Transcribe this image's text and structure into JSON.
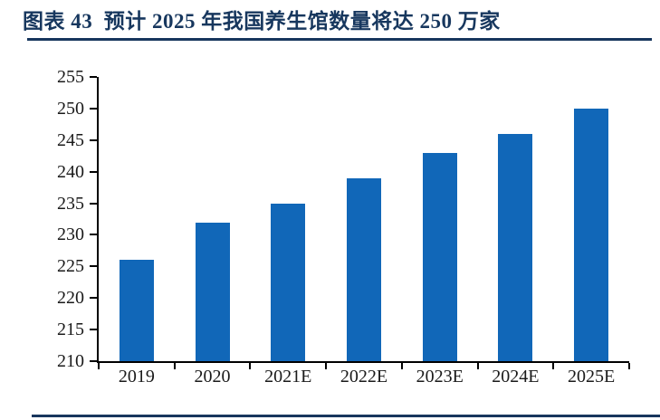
{
  "header": {
    "figure_label": "图表 43",
    "title": "图表 43  预计 2025 年我国养生馆数量将达 250 万家"
  },
  "colors": {
    "accent_rule": "#17365D",
    "title_text": "#17375E",
    "bar_fill": "#1167B8",
    "axis_line": "#000000",
    "tick_text": "#1a1a1a"
  },
  "chart_data": {
    "type": "bar",
    "title": "预计 2025 年我国养生馆数量将达 250 万家",
    "unit_hint": "万家",
    "categories": [
      "2019",
      "2020",
      "2021E",
      "2022E",
      "2023E",
      "2024E",
      "2025E"
    ],
    "values": [
      226,
      232,
      235,
      239,
      243,
      246,
      250
    ],
    "xlabel": "",
    "ylabel": "",
    "ylim": [
      210,
      255
    ],
    "ytick_step": 5,
    "yticks": [
      210,
      215,
      220,
      225,
      230,
      235,
      240,
      245,
      250,
      255
    ],
    "grid": false,
    "legend_position": "none",
    "bar_color": "#1167B8"
  }
}
